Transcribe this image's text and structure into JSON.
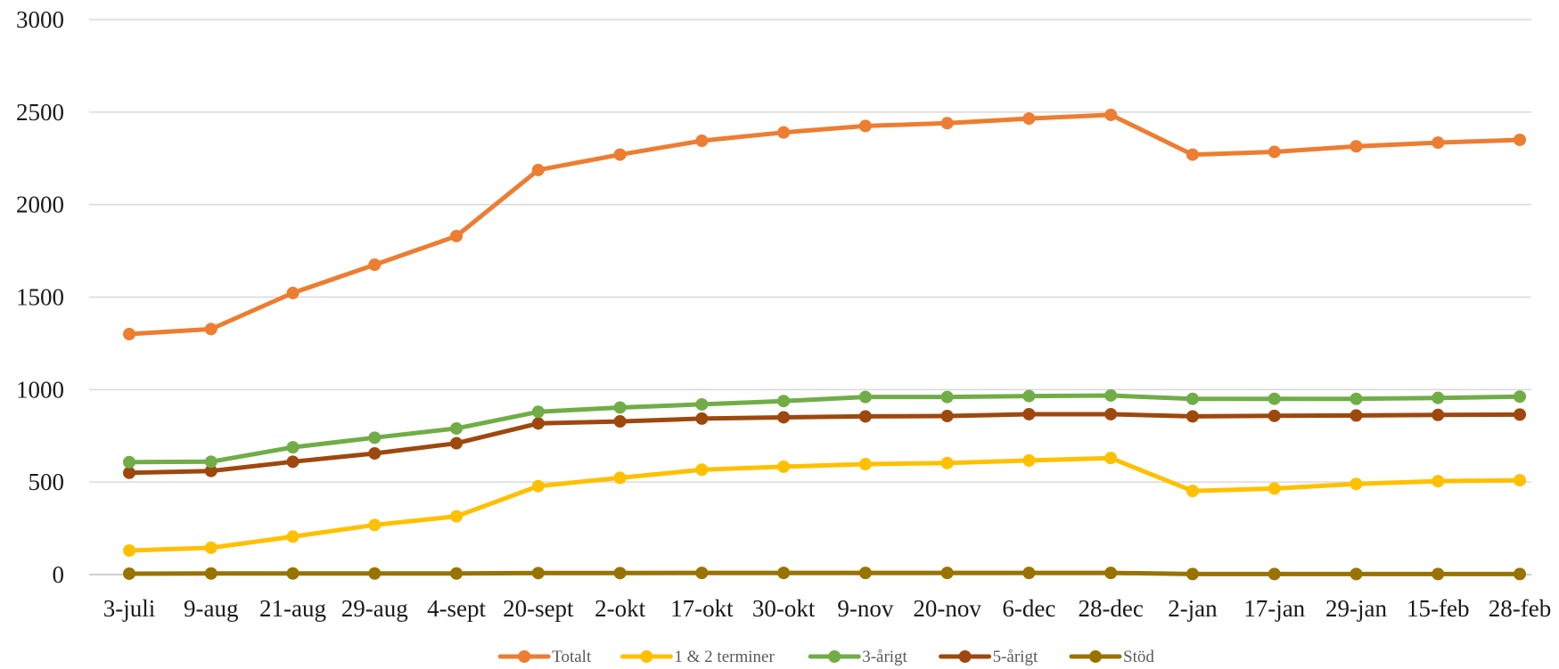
{
  "chart_data": {
    "type": "line",
    "title": "",
    "xlabel": "",
    "ylabel": "",
    "ylim": [
      0,
      3000
    ],
    "yticks": [
      0,
      500,
      1000,
      1500,
      2000,
      2500,
      3000
    ],
    "grid": "horizontal",
    "legend_position": "bottom",
    "categories": [
      "3-juli",
      "9-aug",
      "21-aug",
      "29-aug",
      "4-sept",
      "20-sept",
      "2-okt",
      "17-okt",
      "30-okt",
      "9-nov",
      "20-nov",
      "6-dec",
      "28-dec",
      "2-jan",
      "17-jan",
      "29-jan",
      "15-feb",
      "28-feb"
    ],
    "series": [
      {
        "name": "Totalt",
        "color": "#ED7D31",
        "values": [
          1300,
          1327,
          1522,
          1675,
          1830,
          2187,
          2270,
          2345,
          2390,
          2425,
          2440,
          2465,
          2485,
          2270,
          2285,
          2315,
          2335,
          2350
        ]
      },
      {
        "name": "1 & 2 terminer",
        "color": "#FFC000",
        "values": [
          130,
          145,
          205,
          268,
          315,
          478,
          523,
          567,
          583,
          597,
          603,
          617,
          630,
          452,
          465,
          490,
          505,
          510
        ]
      },
      {
        "name": "3-årigt",
        "color": "#70AD47",
        "values": [
          608,
          610,
          688,
          740,
          790,
          880,
          903,
          920,
          938,
          960,
          960,
          965,
          968,
          950,
          950,
          950,
          955,
          962
        ]
      },
      {
        "name": "5-årigt",
        "color": "#9E480E",
        "values": [
          550,
          560,
          610,
          655,
          710,
          817,
          828,
          843,
          850,
          855,
          857,
          867,
          867,
          855,
          858,
          860,
          863,
          865
        ]
      },
      {
        "name": "Stöd",
        "color": "#997300",
        "values": [
          5,
          6,
          6,
          6,
          6,
          8,
          8,
          9,
          9,
          9,
          9,
          9,
          9,
          3,
          3,
          3,
          3,
          3
        ]
      }
    ]
  }
}
